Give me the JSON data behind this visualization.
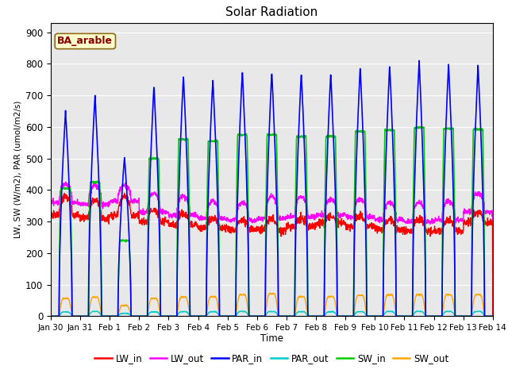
{
  "title": "Solar Radiation",
  "xlabel": "Time",
  "ylabel": "LW, SW (W/m2), PAR (umol/m2/s)",
  "annotation": "BA_arable",
  "annotation_color": "#8B0000",
  "annotation_bg": "#FFFFCC",
  "annotation_border": "#8B6914",
  "ylim": [
    0,
    930
  ],
  "yticks": [
    0,
    100,
    200,
    300,
    400,
    500,
    600,
    700,
    800,
    900
  ],
  "n_days": 15,
  "par_in_peaks": [
    650,
    700,
    505,
    730,
    760,
    752,
    778,
    775,
    770,
    770,
    790,
    795,
    810,
    800,
    795
  ],
  "sw_in_peaks": [
    405,
    425,
    240,
    500,
    560,
    555,
    575,
    575,
    570,
    570,
    585,
    590,
    598,
    595,
    592
  ],
  "sw_out_peaks": [
    75,
    80,
    45,
    75,
    80,
    82,
    90,
    95,
    82,
    82,
    88,
    90,
    90,
    90,
    90
  ],
  "par_out_peaks": [
    18,
    20,
    12,
    18,
    19,
    19,
    20,
    20,
    19,
    19,
    19,
    20,
    20,
    20,
    20
  ],
  "lw_in_base": [
    320,
    310,
    320,
    300,
    290,
    280,
    275,
    275,
    285,
    295,
    285,
    275,
    270,
    270,
    295
  ],
  "lw_in_day": [
    380,
    370,
    380,
    335,
    325,
    310,
    305,
    305,
    310,
    315,
    315,
    305,
    305,
    305,
    330
  ],
  "lw_out_base": [
    360,
    355,
    365,
    330,
    320,
    310,
    305,
    310,
    315,
    320,
    315,
    305,
    300,
    305,
    330
  ],
  "lw_out_day": [
    420,
    415,
    415,
    390,
    380,
    365,
    360,
    380,
    380,
    370,
    370,
    360,
    360,
    365,
    390
  ],
  "lines": {
    "LW_in": {
      "color": "#FF0000",
      "lw": 1.0
    },
    "LW_out": {
      "color": "#FF00FF",
      "lw": 1.0
    },
    "PAR_in": {
      "color": "#0000FF",
      "lw": 1.2
    },
    "PAR_out": {
      "color": "#00CCCC",
      "lw": 1.0
    },
    "SW_in": {
      "color": "#00CC00",
      "lw": 1.2
    },
    "SW_out": {
      "color": "#FFA500",
      "lw": 1.0
    }
  },
  "bg_color": "#E8E8E8",
  "grid_color": "#FFFFFF",
  "xtick_labels": [
    "Jan 30",
    "Jan 31",
    "Feb 1",
    "Feb 2",
    "Feb 3",
    "Feb 4",
    "Feb 5",
    "Feb 6",
    "Feb 7",
    "Feb 8",
    "Feb 9",
    "Feb 10",
    "Feb 11",
    "Feb 12",
    "Feb 13",
    "Feb 14"
  ]
}
